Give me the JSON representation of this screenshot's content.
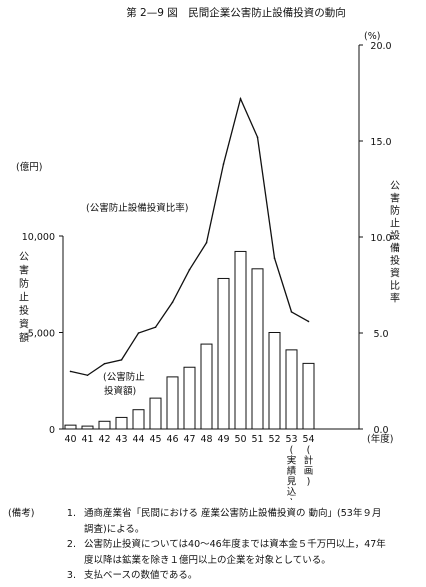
{
  "page_title": "第 2—9 図　民間企業公害防止設備投資の動向",
  "chart_data": {
    "type": "bar+line",
    "title": "第 2—9 図　民間企業公害防止設備投資の動向",
    "categories": [
      "40",
      "41",
      "42",
      "43",
      "44",
      "45",
      "46",
      "47",
      "48",
      "49",
      "50",
      "51",
      "52",
      "53",
      "54"
    ],
    "category_notes": {
      "53": "(実績見込)",
      "54": "(計画)"
    },
    "x_unit": "(年度)",
    "left_axis": {
      "unit": "(億円)",
      "label": "公害防止投資額",
      "ylim": [
        0,
        10000
      ],
      "ticks": [
        "0",
        "5,000",
        "10,000"
      ]
    },
    "right_axis": {
      "unit": "(%)",
      "label": "公害防止設備投資比率",
      "ylim": [
        0,
        20
      ],
      "ticks": [
        "0.0",
        "5.0",
        "10.0",
        "15.0",
        "20.0"
      ]
    },
    "series": [
      {
        "name": "公害防止投資額",
        "type": "bar",
        "axis": "left",
        "values": [
          200,
          150,
          400,
          600,
          1000,
          1600,
          2700,
          3200,
          4400,
          7800,
          9200,
          8300,
          5000,
          4100,
          3400
        ]
      },
      {
        "name": "公害防止設備投資比率",
        "type": "line",
        "axis": "right",
        "values": [
          3.0,
          2.8,
          3.4,
          3.6,
          5.0,
          5.3,
          6.6,
          8.3,
          9.7,
          13.8,
          17.2,
          15.2,
          8.9,
          6.1,
          5.6
        ]
      }
    ],
    "annotations": {
      "line_label": "(公害防止設備投資比率)",
      "bar_label_1": "(公害防止",
      "bar_label_2": "投資額)"
    }
  },
  "notes": {
    "head": "(備考)",
    "items": [
      {
        "num": "1.",
        "lines": [
          "通商産業省「民間における 産業公害防止設備投資の 動向」(53年９月",
          "調査)による。"
        ]
      },
      {
        "num": "2.",
        "lines": [
          "公害防止投資については40〜46年度までは資本金５千万円以上，47年",
          "度以降は鉱業を除き１億円以上の企業を対象としている。"
        ]
      },
      {
        "num": "3.",
        "lines": [
          "支払ベースの数値である。"
        ]
      }
    ]
  }
}
